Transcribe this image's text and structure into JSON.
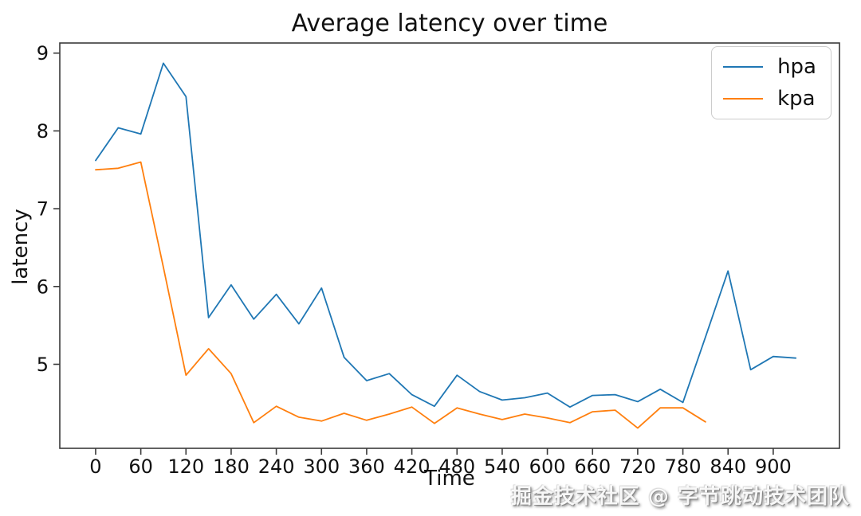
{
  "figure": {
    "watermark": "掘金技术社区 @ 字节跳动技术团队"
  },
  "chart_data": {
    "type": "line",
    "title": "Average latency over time",
    "xlabel": "Time",
    "ylabel": "latency",
    "x_ticks": [
      0,
      60,
      120,
      180,
      240,
      300,
      360,
      420,
      480,
      540,
      600,
      660,
      720,
      780,
      840,
      900
    ],
    "y_ticks": [
      5,
      6,
      7,
      8,
      9
    ],
    "xlim": [
      -47.6,
      988
    ],
    "ylim": [
      3.92,
      9.13
    ],
    "grid": false,
    "legend_position": "upper right",
    "series": [
      {
        "name": "hpa",
        "color": "#1f77b4",
        "x": [
          0,
          30,
          60,
          90,
          120,
          150,
          180,
          210,
          240,
          270,
          300,
          330,
          360,
          390,
          420,
          450,
          480,
          510,
          540,
          570,
          600,
          630,
          660,
          690,
          720,
          750,
          780,
          810,
          840,
          870,
          900,
          930
        ],
        "y": [
          7.62,
          8.04,
          7.96,
          8.87,
          8.44,
          5.6,
          6.02,
          5.58,
          5.9,
          5.52,
          5.98,
          5.09,
          4.79,
          4.88,
          4.61,
          4.46,
          4.86,
          4.65,
          4.54,
          4.57,
          4.63,
          4.45,
          4.6,
          4.61,
          4.52,
          4.68,
          4.51,
          5.35,
          6.2,
          4.93,
          5.1,
          5.08
        ]
      },
      {
        "name": "kpa",
        "color": "#ff7f0e",
        "x": [
          0,
          30,
          60,
          90,
          120,
          150,
          180,
          210,
          240,
          270,
          300,
          330,
          360,
          390,
          420,
          450,
          480,
          510,
          540,
          570,
          600,
          630,
          660,
          690,
          720,
          750,
          780,
          810
        ],
        "y": [
          7.5,
          7.52,
          7.6,
          6.25,
          4.86,
          5.2,
          4.88,
          4.25,
          4.46,
          4.32,
          4.27,
          4.37,
          4.28,
          4.36,
          4.45,
          4.24,
          4.44,
          4.36,
          4.29,
          4.36,
          4.31,
          4.25,
          4.39,
          4.41,
          4.18,
          4.44,
          4.44,
          4.26
        ]
      }
    ]
  }
}
